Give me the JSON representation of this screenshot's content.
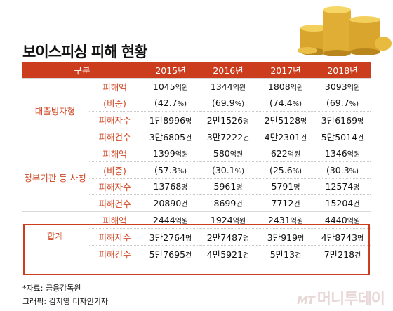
{
  "title": "보이스피싱 피해 현황",
  "header": {
    "category": "구분",
    "years": [
      "2015년",
      "2016년",
      "2017년",
      "2018년"
    ]
  },
  "groups": [
    {
      "label": "대출빙자형",
      "rows": [
        {
          "metric": "피해액",
          "values": [
            [
              "1045",
              "억원"
            ],
            [
              "1344",
              "억원"
            ],
            [
              "1808",
              "억원"
            ],
            [
              "3093",
              "억원"
            ]
          ]
        },
        {
          "metric": "(비중)",
          "values": [
            [
              "(42.7",
              "%)"
            ],
            [
              "(69.9",
              "%)"
            ],
            [
              "(74.4",
              "%)"
            ],
            [
              "(69.7",
              "%)"
            ]
          ]
        },
        {
          "metric": "피해자수",
          "values": [
            [
              "1만8996",
              "명"
            ],
            [
              "2만1526",
              "명"
            ],
            [
              "2만5128",
              "명"
            ],
            [
              "3만6169",
              "명"
            ]
          ]
        },
        {
          "metric": "피해건수",
          "values": [
            [
              "3만6805",
              "건"
            ],
            [
              "3만7222",
              "건"
            ],
            [
              "4만2301",
              "건"
            ],
            [
              "5만5014",
              "건"
            ]
          ]
        }
      ]
    },
    {
      "label": "정부기관 등 사칭",
      "rows": [
        {
          "metric": "피해액",
          "values": [
            [
              "1399",
              "억원"
            ],
            [
              "580",
              "억원"
            ],
            [
              "622",
              "억원"
            ],
            [
              "1346",
              "억원"
            ]
          ]
        },
        {
          "metric": "(비중)",
          "values": [
            [
              "(57.3",
              "%)"
            ],
            [
              "(30.1",
              "%)"
            ],
            [
              "(25.6",
              "%)"
            ],
            [
              "(30.3",
              "%)"
            ]
          ]
        },
        {
          "metric": "피해자수",
          "values": [
            [
              "13768",
              "명"
            ],
            [
              "5961",
              "명"
            ],
            [
              "5791",
              "명"
            ],
            [
              "12574",
              "명"
            ]
          ]
        },
        {
          "metric": "피해건수",
          "values": [
            [
              "20890",
              "건"
            ],
            [
              "8699",
              "건"
            ],
            [
              "7712",
              "건"
            ],
            [
              "15204",
              "건"
            ]
          ]
        }
      ]
    },
    {
      "label": "합계",
      "rows": [
        {
          "metric": "피해액",
          "values": [
            [
              "2444",
              "억원"
            ],
            [
              "1924",
              "억원"
            ],
            [
              "2431",
              "억원"
            ],
            [
              "4440",
              "억원"
            ]
          ]
        },
        {
          "metric": "피해자수",
          "values": [
            [
              "3만2764",
              "명"
            ],
            [
              "2만7487",
              "명"
            ],
            [
              "3만919",
              "명"
            ],
            [
              "4만8743",
              "명"
            ]
          ]
        },
        {
          "metric": "피해건수",
          "values": [
            [
              "5만7695",
              "건"
            ],
            [
              "4만5921",
              "건"
            ],
            [
              "5만13",
              "건"
            ],
            [
              "7만218",
              "건"
            ]
          ]
        }
      ]
    }
  ],
  "source": "*자료: 금융감독원",
  "credit": "그래픽: 김지영 디자인기자",
  "logo": {
    "mt": "MT",
    "name": "머니투데이"
  },
  "colors": {
    "accent": "#cc3d1e",
    "label": "#d04724",
    "coin": "#e2b23a"
  }
}
